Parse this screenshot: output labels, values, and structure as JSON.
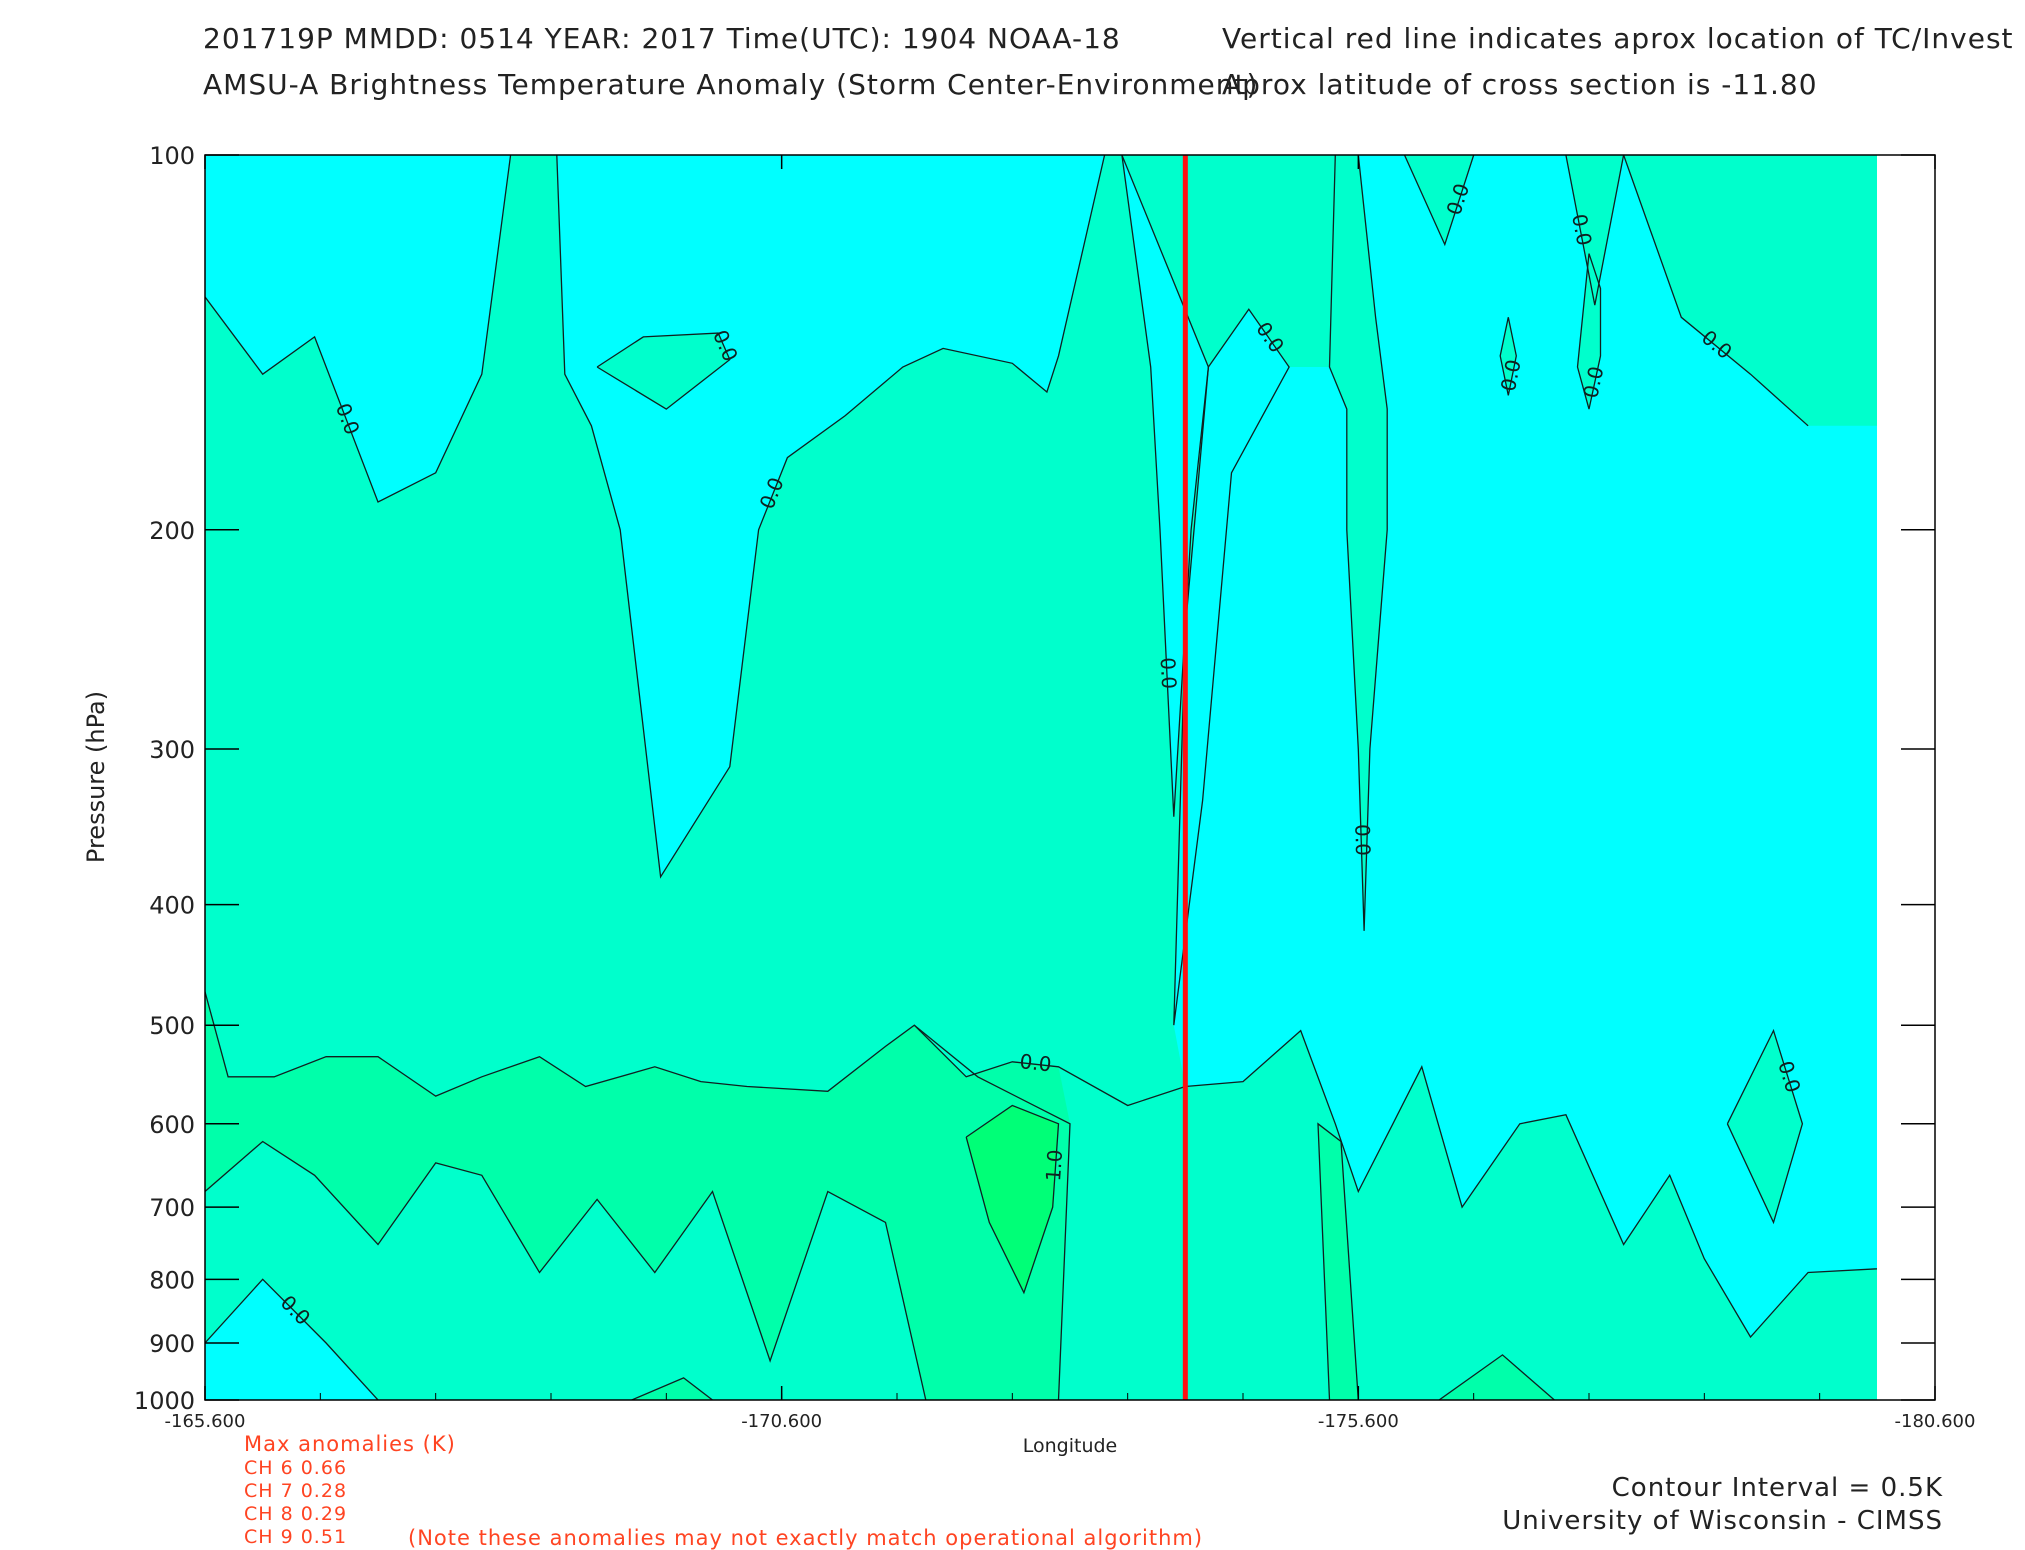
{
  "header": {
    "line1": "201719P  MMDD: 0514 YEAR: 2017 Time(UTC): 1904 NOAA-18",
    "line2": "AMSU-A Brightness Temperature Anomaly (Storm Center-Environment)",
    "line3": "Vertical red line indicates aprox location of TC/Invest",
    "line4": "Aprox latitude of cross section is -11.80"
  },
  "chart_data": {
    "type": "contour",
    "xlabel": "Longitude",
    "ylabel": "Pressure (hPa)",
    "xlim": [
      -165.6,
      -180.6
    ],
    "ylim": [
      1000,
      100
    ],
    "y_scale": "log",
    "x_ticks": [
      "-165.600",
      "-170.600",
      "-175.600",
      "-180.600"
    ],
    "y_ticks": [
      "100",
      "200",
      "300",
      "400",
      "500",
      "600",
      "700",
      "800",
      "900",
      "1000"
    ],
    "storm_longitude": -174.1,
    "storm_line_color": "#ff1010",
    "contour_interval": 0.5,
    "fill_colors": {
      "negative": "#00ffff",
      "zero_band": "#00ffcc",
      "half": "#00ffaa",
      "one": "#00ff77"
    },
    "contours": [
      {
        "level": 0.0,
        "label": "0.0",
        "points": [
          [
            -165.6,
            130
          ],
          [
            -166.1,
            150
          ],
          [
            -166.55,
            140
          ],
          [
            -167.1,
            190
          ],
          [
            -167.6,
            180
          ],
          [
            -168.0,
            150
          ],
          [
            -168.25,
            100
          ]
        ]
      },
      {
        "level": 0.0,
        "label": "0.0",
        "points": [
          [
            -168.65,
            100
          ],
          [
            -168.72,
            150
          ],
          [
            -168.95,
            165
          ],
          [
            -169.2,
            200
          ],
          [
            -169.55,
            380
          ],
          [
            -170.15,
            310
          ],
          [
            -170.4,
            200
          ],
          [
            -170.65,
            175
          ],
          [
            -171.15,
            162
          ],
          [
            -171.65,
            148
          ],
          [
            -172.0,
            143
          ],
          [
            -172.6,
            147
          ],
          [
            -172.9,
            155
          ],
          [
            -173.0,
            145
          ],
          [
            -173.4,
            100
          ]
        ]
      },
      {
        "level": 0.0,
        "label": "0.0",
        "points": [
          [
            -169.0,
            148
          ],
          [
            -169.4,
            140
          ],
          [
            -170.05,
            139
          ],
          [
            -170.15,
            146
          ],
          [
            -169.6,
            160
          ],
          [
            -169.0,
            148
          ]
        ]
      },
      {
        "level": 0.0,
        "label": "0.0",
        "points": [
          [
            -173.55,
            100
          ],
          [
            -173.8,
            148
          ],
          [
            -173.88,
            200
          ],
          [
            -174.0,
            340
          ],
          [
            -174.15,
            200
          ],
          [
            -174.3,
            148
          ],
          [
            -173.55,
            100
          ]
        ]
      },
      {
        "level": 0.0,
        "label": "0.0",
        "points": [
          [
            -174.0,
            500
          ],
          [
            -174.1,
            240
          ],
          [
            -174.3,
            148
          ],
          [
            -174.65,
            133
          ],
          [
            -175.0,
            148
          ],
          [
            -174.5,
            180
          ],
          [
            -174.25,
            330
          ],
          [
            -174.0,
            500
          ]
        ]
      },
      {
        "level": 0.0,
        "label": "0.0",
        "points": [
          [
            -175.4,
            100
          ],
          [
            -175.35,
            148
          ],
          [
            -175.5,
            160
          ],
          [
            -175.5,
            200
          ],
          [
            -175.6,
            300
          ],
          [
            -175.65,
            420
          ],
          [
            -175.7,
            300
          ],
          [
            -175.85,
            200
          ],
          [
            -175.85,
            160
          ],
          [
            -175.75,
            135
          ],
          [
            -175.6,
            100
          ]
        ]
      },
      {
        "level": 0.0,
        "label": "0.0",
        "points": [
          [
            -176.6,
            100
          ],
          [
            -176.35,
            118
          ],
          [
            -176.0,
            100
          ]
        ]
      },
      {
        "level": 0.0,
        "label": "0.0",
        "points": [
          [
            -176.9,
            135
          ],
          [
            -176.97,
            145
          ],
          [
            -176.9,
            156
          ],
          [
            -176.83,
            145
          ],
          [
            -176.9,
            135
          ]
        ]
      },
      {
        "level": 0.0,
        "label": "0.0",
        "points": [
          [
            -177.4,
            100
          ],
          [
            -177.65,
            132
          ],
          [
            -177.9,
            100
          ]
        ]
      },
      {
        "level": 0.0,
        "label": "0.0",
        "points": [
          [
            -177.6,
            120
          ],
          [
            -177.7,
            128
          ],
          [
            -177.7,
            145
          ],
          [
            -177.6,
            160
          ],
          [
            -177.5,
            148
          ],
          [
            -177.6,
            120
          ]
        ]
      },
      {
        "level": 0.0,
        "label": "0.0",
        "points": [
          [
            -177.9,
            100
          ],
          [
            -178.4,
            135
          ],
          [
            -179.0,
            150
          ],
          [
            -179.5,
            165
          ]
        ]
      },
      {
        "level": 0.0,
        "label": "0.0",
        "points": [
          [
            -165.6,
            470
          ],
          [
            -165.8,
            550
          ],
          [
            -166.2,
            550
          ],
          [
            -166.65,
            530
          ],
          [
            -167.1,
            530
          ],
          [
            -167.6,
            570
          ],
          [
            -168.0,
            550
          ],
          [
            -168.5,
            530
          ],
          [
            -168.9,
            560
          ],
          [
            -169.5,
            540
          ],
          [
            -169.9,
            555
          ],
          [
            -170.3,
            560
          ],
          [
            -171.0,
            565
          ],
          [
            -171.5,
            520
          ],
          [
            -171.75,
            500
          ],
          [
            -172.2,
            550
          ],
          [
            -172.6,
            535
          ],
          [
            -173.0,
            540
          ],
          [
            -173.6,
            580
          ],
          [
            -174.1,
            560
          ],
          [
            -174.6,
            555
          ],
          [
            -175.1,
            505
          ],
          [
            -175.4,
            600
          ],
          [
            -175.6,
            680
          ],
          [
            -175.9,
            600
          ],
          [
            -176.15,
            540
          ],
          [
            -176.5,
            700
          ],
          [
            -177.0,
            600
          ],
          [
            -177.4,
            590
          ],
          [
            -177.9,
            750
          ],
          [
            -178.3,
            660
          ],
          [
            -178.6,
            770
          ],
          [
            -179.0,
            890
          ],
          [
            -179.5,
            790
          ],
          [
            -180.6,
            780
          ]
        ]
      },
      {
        "level": 0.0,
        "label": "0.0",
        "points": [
          [
            -165.6,
            900
          ],
          [
            -166.1,
            800
          ],
          [
            -166.65,
            900
          ],
          [
            -167.1,
            1000
          ]
        ]
      },
      {
        "level": 0.0,
        "label": "0.0",
        "points": [
          [
            -178.8,
            600
          ],
          [
            -179.2,
            505
          ],
          [
            -179.45,
            600
          ],
          [
            -179.2,
            720
          ],
          [
            -178.8,
            600
          ]
        ]
      },
      {
        "level": 0.5,
        "label": "",
        "points": [
          [
            -165.6,
            680
          ],
          [
            -166.1,
            620
          ],
          [
            -166.55,
            660
          ],
          [
            -167.1,
            750
          ],
          [
            -167.6,
            645
          ],
          [
            -168.0,
            660
          ],
          [
            -168.5,
            790
          ],
          [
            -169.0,
            690
          ],
          [
            -169.5,
            790
          ],
          [
            -170.0,
            680
          ],
          [
            -170.5,
            930
          ],
          [
            -171.0,
            680
          ],
          [
            -171.5,
            720
          ],
          [
            -171.85,
            1000
          ]
        ]
      },
      {
        "level": 0.5,
        "label": "",
        "points": [
          [
            -173.0,
            1000
          ],
          [
            -173.1,
            600
          ],
          [
            -172.3,
            550
          ],
          [
            -171.75,
            500
          ]
        ]
      },
      {
        "level": 0.5,
        "label": "",
        "points": [
          [
            -175.35,
            1000
          ],
          [
            -175.25,
            600
          ],
          [
            -175.45,
            620
          ],
          [
            -175.6,
            1000
          ]
        ]
      },
      {
        "level": 0.5,
        "label": "",
        "points": [
          [
            -176.3,
            1000
          ],
          [
            -176.85,
            920
          ],
          [
            -177.3,
            1000
          ]
        ]
      },
      {
        "level": 0.5,
        "label": "",
        "points": [
          [
            -169.3,
            1000
          ],
          [
            -169.75,
            960
          ],
          [
            -170.0,
            1000
          ]
        ]
      },
      {
        "level": 1.0,
        "label": "1.0",
        "points": [
          [
            -172.2,
            615
          ],
          [
            -172.6,
            580
          ],
          [
            -173.0,
            600
          ],
          [
            -172.95,
            700
          ],
          [
            -172.7,
            820
          ],
          [
            -172.4,
            720
          ],
          [
            -172.2,
            615
          ]
        ]
      }
    ]
  },
  "anomalies": {
    "title": "Max anomalies (K)",
    "rows": [
      "CH 6  0.66",
      "CH 7  0.28",
      "CH 8  0.29",
      "CH 9  0.51"
    ],
    "note": "(Note these anomalies may not exactly match operational algorithm)"
  },
  "footer": {
    "interval": "Contour Interval = 0.5K",
    "credit": "University of Wisconsin - CIMSS"
  }
}
